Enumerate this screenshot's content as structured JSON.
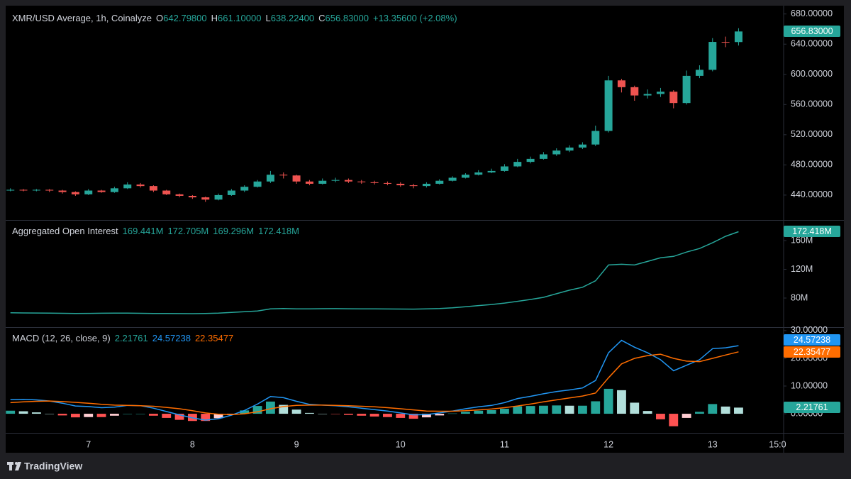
{
  "chart_data": [
    {
      "type": "candlestick",
      "title": "XMR/USD Average, 1h, Coinalyze",
      "legend": [
        {
          "label": "O",
          "value": "642.79800"
        },
        {
          "label": "H",
          "value": "661.10000"
        },
        {
          "label": "L",
          "value": "638.22400"
        },
        {
          "label": "C",
          "value": "656.83000"
        }
      ],
      "change": "+13.35600 (+2.08%)",
      "x": [
        6,
        9,
        12,
        15,
        18,
        21,
        24,
        27,
        30,
        33,
        36,
        39,
        42,
        45,
        48,
        51,
        54,
        57,
        60,
        63,
        66,
        69,
        72,
        75,
        78,
        81,
        84,
        87,
        90,
        93,
        96,
        99,
        102,
        105,
        108,
        111,
        114,
        117,
        120,
        123,
        126,
        129,
        132,
        135,
        138,
        141,
        144,
        147,
        150,
        153,
        156,
        159,
        162,
        165,
        168,
        171,
        174
      ],
      "open": [
        446,
        447,
        446.5,
        447,
        446,
        444,
        441,
        446,
        444,
        449,
        454,
        452,
        446,
        441,
        439,
        437,
        434,
        440,
        446,
        451,
        458,
        467,
        466,
        458,
        455,
        459,
        460,
        458,
        457,
        456,
        455,
        453,
        452,
        455,
        459,
        463,
        467,
        470,
        472,
        478,
        484,
        488,
        494,
        499,
        503,
        507,
        525,
        592,
        583,
        572,
        574,
        577,
        562,
        598,
        606,
        643,
        642.798
      ],
      "high": [
        449,
        448,
        448,
        448,
        447,
        445,
        448,
        447,
        451,
        457,
        456,
        453,
        447,
        442,
        440,
        438,
        442,
        448,
        453,
        460,
        472,
        470,
        467,
        460,
        462,
        463,
        462,
        460,
        459,
        458,
        457,
        455,
        457,
        461,
        465,
        469,
        473,
        475,
        481,
        488,
        491,
        497,
        502,
        506,
        510,
        532,
        598,
        594,
        585,
        580,
        582,
        579,
        605,
        612,
        648,
        650,
        661.1
      ],
      "low": [
        445,
        445,
        445,
        444,
        442,
        439,
        440,
        443,
        443,
        448,
        450,
        444,
        440,
        437,
        435,
        431,
        433,
        439,
        444,
        450,
        456,
        462,
        455,
        453,
        454,
        457,
        456,
        455,
        454,
        453,
        451,
        449,
        450,
        454,
        458,
        462,
        466,
        469,
        471,
        477,
        482,
        487,
        492,
        497,
        501,
        505,
        523,
        576,
        565,
        568,
        570,
        555,
        560,
        595,
        604,
        636,
        638.224
      ],
      "close": [
        447,
        446.5,
        447,
        446,
        444,
        441,
        446,
        444,
        449,
        454,
        452,
        446,
        441,
        439,
        437,
        434,
        440,
        446,
        451,
        458,
        467,
        466,
        458,
        455,
        459,
        460,
        458,
        457,
        456,
        455,
        453,
        452,
        455,
        459,
        463,
        467,
        470,
        472,
        478,
        484,
        488,
        494,
        499,
        503,
        507,
        525,
        592,
        583,
        572,
        574,
        577,
        562,
        598,
        606,
        643,
        642.798,
        656.83
      ],
      "up_color": "#26a69a",
      "down_color": "#ef5350",
      "xlim": [
        4.9,
        184.4
      ],
      "ylim": [
        407,
        691
      ],
      "yticks": [
        {
          "value": 440,
          "label": "440.00000"
        },
        {
          "value": 480,
          "label": "480.00000"
        },
        {
          "value": 520,
          "label": "520.00000"
        },
        {
          "value": 560,
          "label": "560.00000"
        },
        {
          "value": 600,
          "label": "600.00000"
        },
        {
          "value": 640,
          "label": "640.00000"
        },
        {
          "value": 680,
          "label": "680.00000"
        }
      ]
    },
    {
      "type": "line",
      "title": "Aggregated Open Interest",
      "legend_values": [
        "169.441M",
        "172.705M",
        "169.296M",
        "172.418M"
      ],
      "x": [
        6,
        9,
        12,
        15,
        18,
        21,
        24,
        27,
        30,
        33,
        36,
        39,
        42,
        45,
        48,
        51,
        54,
        57,
        60,
        63,
        66,
        69,
        72,
        75,
        78,
        81,
        84,
        87,
        90,
        93,
        96,
        99,
        102,
        105,
        108,
        111,
        114,
        117,
        120,
        123,
        126,
        129,
        132,
        135,
        138,
        141,
        144,
        147,
        150,
        153,
        156,
        159,
        162,
        165,
        168,
        171,
        174
      ],
      "values": [
        59.5,
        59.3,
        59.2,
        59,
        58.8,
        58.5,
        58.7,
        58.9,
        59.1,
        59,
        58.8,
        58.6,
        58.5,
        58.4,
        58.3,
        58.5,
        59,
        60,
        61,
        62,
        65,
        65.5,
        65,
        65,
        65.2,
        65.3,
        65.1,
        65,
        64.9,
        64.8,
        64.7,
        64.6,
        65,
        65.5,
        66.5,
        68,
        69.5,
        71,
        73,
        75.5,
        78,
        81,
        86,
        91,
        95,
        104,
        126,
        127,
        126,
        131,
        136,
        138,
        144,
        149,
        157,
        166,
        172.418
      ],
      "color": "#26a69a",
      "xlim": [
        4.9,
        184.4
      ],
      "ylim": [
        40.5,
        186.7
      ],
      "yticks": [
        {
          "value": 80,
          "label": "80M"
        },
        {
          "value": 120,
          "label": "120M"
        },
        {
          "value": 160,
          "label": "160M"
        }
      ]
    },
    {
      "type": "line",
      "title": "MACD (12, 26, close, 9)",
      "x": [
        6,
        9,
        12,
        15,
        18,
        21,
        24,
        27,
        30,
        33,
        36,
        39,
        42,
        45,
        48,
        51,
        54,
        57,
        60,
        63,
        66,
        69,
        72,
        75,
        78,
        81,
        84,
        87,
        90,
        93,
        96,
        99,
        102,
        105,
        108,
        111,
        114,
        117,
        120,
        123,
        126,
        129,
        132,
        135,
        138,
        141,
        144,
        147,
        150,
        153,
        156,
        159,
        162,
        165,
        168,
        171,
        174
      ],
      "series": [
        {
          "type": "bar",
          "color": "#26a69a",
          "colors": [
            "#26a69a",
            "#b2dfdb",
            "#ffcdd2",
            "#ff5252"
          ],
          "last_label": "2.21761",
          "values": [
            1.1,
            0.9,
            0.5,
            0,
            -0.6,
            -1.3,
            -1.2,
            -1.2,
            -0.7,
            0,
            0,
            -0.7,
            -1.5,
            -2.2,
            -2.6,
            -2.6,
            -1.6,
            -0.2,
            1.2,
            2.8,
            4.4,
            3.2,
            1.5,
            0.3,
            0,
            -0.1,
            -0.4,
            -0.7,
            -1.0,
            -1.2,
            -1.5,
            -1.8,
            -1.3,
            -0.6,
            0.1,
            0.7,
            1.1,
            1.3,
            1.8,
            2.7,
            2.8,
            2.9,
            3.0,
            2.9,
            2.9,
            4.5,
            9,
            8.5,
            4,
            1,
            -2,
            -4.5,
            -1.5,
            0.7,
            3.5,
            2.6,
            2.21761
          ]
        },
        {
          "color": "#2196f3",
          "last_label": "24.57238",
          "values": [
            5.1,
            5.2,
            5.0,
            4.6,
            3.8,
            2.8,
            2.6,
            2.2,
            2.4,
            3.0,
            2.9,
            2.0,
            0.8,
            -0.4,
            -1.5,
            -2.3,
            -1.8,
            -0.5,
            1.2,
            3.5,
            6.2,
            5.8,
            4.5,
            3.4,
            3.1,
            2.9,
            2.5,
            2.0,
            1.5,
            1.0,
            0.3,
            -0.4,
            -0.3,
            0.3,
            1.0,
            1.8,
            2.5,
            3.0,
            4.0,
            5.5,
            6.3,
            7.2,
            8.0,
            8.6,
            9.3,
            12.0,
            22,
            26.5,
            24.0,
            22.0,
            19.5,
            15.5,
            17.5,
            19.5,
            23.5,
            23.8,
            24.57238
          ]
        },
        {
          "color": "#ff6d00",
          "last_label": "22.35477",
          "values": [
            4.0,
            4.3,
            4.5,
            4.6,
            4.4,
            4.1,
            3.8,
            3.4,
            3.1,
            3.0,
            2.9,
            2.7,
            2.3,
            1.8,
            1.1,
            0.3,
            -0.2,
            -0.3,
            0.0,
            0.7,
            1.8,
            2.6,
            3.0,
            3.1,
            3.1,
            3.0,
            2.9,
            2.7,
            2.5,
            2.2,
            1.8,
            1.4,
            1.0,
            0.9,
            0.9,
            1.1,
            1.4,
            1.7,
            2.2,
            2.8,
            3.5,
            4.3,
            5.0,
            5.7,
            6.4,
            7.5,
            13,
            18,
            20,
            21,
            21.5,
            20,
            19,
            18.8,
            20,
            21.2,
            22.35477
          ]
        }
      ],
      "xlim": [
        4.9,
        184.4
      ],
      "ylim": [
        -6.9,
        31
      ],
      "yticks": [
        {
          "value": 0,
          "label": "0.00000"
        },
        {
          "value": 10,
          "label": "10.00000"
        },
        {
          "value": 20,
          "label": "20.00000"
        },
        {
          "value": 30,
          "label": "30.00000"
        }
      ],
      "xticks": [
        {
          "value": 24,
          "label": "7"
        },
        {
          "value": 48,
          "label": "8"
        },
        {
          "value": 72,
          "label": "9"
        },
        {
          "value": 96,
          "label": "10"
        },
        {
          "value": 120,
          "label": "11"
        },
        {
          "value": 144,
          "label": "12"
        },
        {
          "value": 168,
          "label": "13"
        },
        {
          "value": 183,
          "label": "15:0"
        }
      ]
    }
  ],
  "footer": {
    "brand": "TradingView"
  }
}
